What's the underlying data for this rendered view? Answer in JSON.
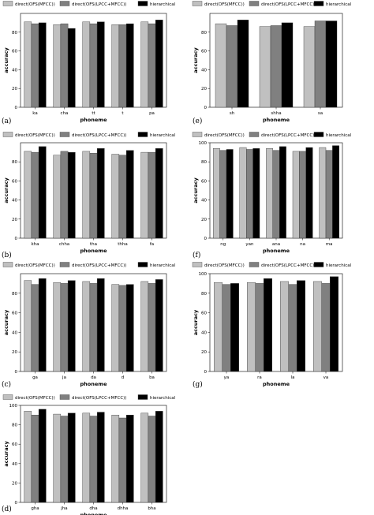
{
  "legend": [
    "direct(OFS(MFCC))",
    "direct(OFS(LPCC+MFCC))",
    "hierarchical"
  ],
  "series_colors": [
    "#c0c0c0",
    "#808080",
    "#000000"
  ],
  "chart_data": [
    {
      "panel": "(a)",
      "type": "bar",
      "xlabel": "phoneme",
      "ylabel": "accuracy",
      "ylim": [
        0,
        100
      ],
      "yticks": [
        0,
        20,
        40,
        60,
        80
      ],
      "categories": [
        "ka",
        "cha",
        "tt",
        "t",
        "pa"
      ],
      "series": [
        {
          "name": "direct(OFS(MFCC))",
          "values": [
            91,
            88,
            91,
            88,
            91
          ]
        },
        {
          "name": "direct(OFS(LPCC+MFCC))",
          "values": [
            89,
            89,
            89,
            88,
            89
          ]
        },
        {
          "name": "hierarchical",
          "values": [
            90,
            84,
            91,
            89,
            93
          ]
        }
      ]
    },
    {
      "panel": "(b)",
      "type": "bar",
      "xlabel": "phoneme",
      "ylabel": "accuracy",
      "ylim": [
        0,
        100
      ],
      "yticks": [
        0,
        20,
        40,
        60,
        80
      ],
      "categories": [
        "kha",
        "chha",
        "tha",
        "thha",
        "fa"
      ],
      "series": [
        {
          "name": "direct(OFS(MFCC))",
          "values": [
            91,
            87,
            91,
            88,
            90
          ]
        },
        {
          "name": "direct(OFS(LPCC+MFCC))",
          "values": [
            90,
            91,
            89,
            87,
            90
          ]
        },
        {
          "name": "hierarchical",
          "values": [
            96,
            90,
            94,
            92,
            94
          ]
        }
      ]
    },
    {
      "panel": "(c)",
      "type": "bar",
      "xlabel": "phoneme",
      "ylabel": "accuracy",
      "ylim": [
        0,
        100
      ],
      "yticks": [
        0,
        20,
        40,
        60,
        80
      ],
      "categories": [
        "ga",
        "ja",
        "da",
        "d",
        "ba"
      ],
      "series": [
        {
          "name": "direct(OFS(MFCC))",
          "values": [
            93,
            91,
            92,
            89,
            92
          ]
        },
        {
          "name": "direct(OFS(LPCC+MFCC))",
          "values": [
            89,
            90,
            90,
            88,
            90
          ]
        },
        {
          "name": "hierarchical",
          "values": [
            95,
            93,
            95,
            89,
            94
          ]
        }
      ]
    },
    {
      "panel": "(d)",
      "type": "bar",
      "xlabel": "phoneme",
      "ylabel": "accuracy",
      "ylim": [
        0,
        100
      ],
      "yticks": [
        0,
        20,
        40,
        60,
        80,
        100
      ],
      "categories": [
        "gha",
        "jha",
        "dha",
        "dhha",
        "bha"
      ],
      "series": [
        {
          "name": "direct(OFS(MFCC))",
          "values": [
            94,
            91,
            92,
            90,
            92
          ]
        },
        {
          "name": "direct(OFS(LPCC+MFCC))",
          "values": [
            90,
            89,
            89,
            87,
            89
          ]
        },
        {
          "name": "hierarchical",
          "values": [
            96,
            92,
            93,
            90,
            94
          ]
        }
      ]
    },
    {
      "panel": "(e)",
      "type": "bar",
      "xlabel": "phoneme",
      "ylabel": "accuracy",
      "ylim": [
        0,
        100
      ],
      "yticks": [
        0,
        20,
        40,
        60,
        80
      ],
      "categories": [
        "sh",
        "shha",
        "sa"
      ],
      "series": [
        {
          "name": "direct(OFS(MFCC))",
          "values": [
            89,
            86,
            86
          ]
        },
        {
          "name": "direct(OFS(LPCC+MFCC))",
          "values": [
            87,
            87,
            92
          ]
        },
        {
          "name": "hierarchical",
          "values": [
            93,
            90,
            92
          ]
        }
      ]
    },
    {
      "panel": "(f)",
      "type": "bar",
      "xlabel": "phoneme",
      "ylabel": "accuracy",
      "ylim": [
        0,
        100
      ],
      "yticks": [
        0,
        20,
        40,
        60,
        80,
        100
      ],
      "categories": [
        "ng",
        "yan",
        "ana",
        "na",
        "ma"
      ],
      "series": [
        {
          "name": "direct(OFS(MFCC))",
          "values": [
            94,
            95,
            94,
            91,
            95
          ]
        },
        {
          "name": "direct(OFS(LPCC+MFCC))",
          "values": [
            92,
            93,
            92,
            91,
            92
          ]
        },
        {
          "name": "hierarchical",
          "values": [
            93,
            94,
            96,
            95,
            97
          ]
        }
      ]
    },
    {
      "panel": "(g)",
      "type": "bar",
      "xlabel": "phoneme",
      "ylabel": "accuracy",
      "ylim": [
        0,
        100
      ],
      "yticks": [
        0,
        20,
        40,
        60,
        80,
        100
      ],
      "categories": [
        "ya",
        "ra",
        "la",
        "va"
      ],
      "series": [
        {
          "name": "direct(OFS(MFCC))",
          "values": [
            91,
            91,
            92,
            92
          ]
        },
        {
          "name": "direct(OFS(LPCC+MFCC))",
          "values": [
            89,
            90,
            89,
            90
          ]
        },
        {
          "name": "hierarchical",
          "values": [
            90,
            95,
            93,
            97
          ]
        }
      ]
    }
  ]
}
